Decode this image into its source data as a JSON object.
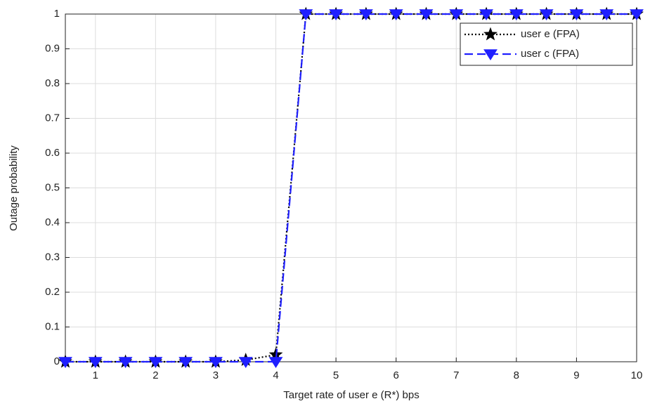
{
  "chart_data": {
    "type": "line",
    "xlabel": "Target rate of user e (R*) bps",
    "ylabel": "Outage probability",
    "x": [
      0.5,
      1,
      1.5,
      2,
      2.5,
      3,
      3.5,
      4,
      4.5,
      5,
      5.5,
      6,
      6.5,
      7,
      7.5,
      8,
      8.5,
      9,
      9.5,
      10
    ],
    "series": [
      {
        "name": "user e (FPA)",
        "color": "#000000",
        "dash": "dotted",
        "marker": "star",
        "values": [
          0,
          0,
          0,
          0,
          0,
          0,
          0.005,
          0.02,
          1,
          1,
          1,
          1,
          1,
          1,
          1,
          1,
          1,
          1,
          1,
          1
        ]
      },
      {
        "name": "user c (FPA)",
        "color": "#1f1fff",
        "dash": "dashed",
        "marker": "triangle-down",
        "values": [
          0,
          0,
          0,
          0,
          0,
          0,
          0,
          0,
          1,
          1,
          1,
          1,
          1,
          1,
          1,
          1,
          1,
          1,
          1,
          1
        ]
      }
    ],
    "xlim": [
      0.5,
      10
    ],
    "xticks": [
      1,
      2,
      3,
      4,
      5,
      6,
      7,
      8,
      9,
      10
    ],
    "ylim": [
      0,
      1
    ],
    "yticks": [
      0,
      0.1,
      0.2,
      0.3,
      0.4,
      0.5,
      0.6,
      0.7,
      0.8,
      0.9,
      1
    ],
    "grid": true,
    "legend": "top-right"
  }
}
